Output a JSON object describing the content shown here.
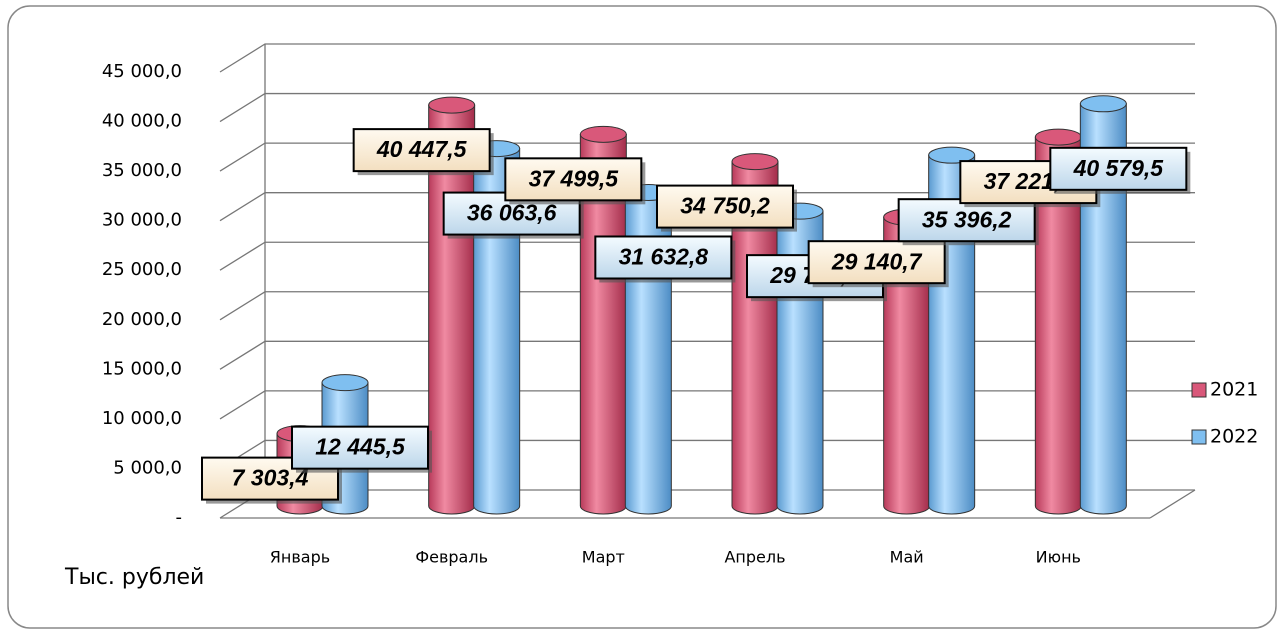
{
  "chart_data": {
    "type": "bar3d",
    "y_axis_label": "Тыс. рублей",
    "categories": [
      "Январь",
      "Февраль",
      "Март",
      "Апрель",
      "Май",
      "Июнь"
    ],
    "series": [
      {
        "name": "2021",
        "color": "#d9587a",
        "values": [
          7303.4,
          40447.5,
          37499.5,
          34750.2,
          29140.7,
          37221.3
        ],
        "value_labels": [
          "7 303,4",
          "40 447,5",
          "37 499,5",
          "34 750,2",
          "29 140,7",
          "37 221,3"
        ]
      },
      {
        "name": "2022",
        "color": "#7fbff0",
        "values": [
          12445.5,
          36063.6,
          31632.8,
          29750.1,
          35396.2,
          40579.5
        ],
        "value_labels": [
          "12 445,5",
          "36 063,6",
          "31 632,8",
          "29 750,1",
          "35 396,2",
          "40 579,5"
        ]
      }
    ],
    "ylim": [
      0,
      45000
    ],
    "yticks": [
      {
        "value": 0,
        "label": "-"
      },
      {
        "value": 5000,
        "label": "5 000,0"
      },
      {
        "value": 10000,
        "label": "10 000,0"
      },
      {
        "value": 15000,
        "label": "15 000,0"
      },
      {
        "value": 20000,
        "label": "20 000,0"
      },
      {
        "value": 25000,
        "label": "25 000,0"
      },
      {
        "value": 30000,
        "label": "30 000,0"
      },
      {
        "value": 35000,
        "label": "35 000,0"
      },
      {
        "value": 40000,
        "label": "40 000,0"
      },
      {
        "value": 45000,
        "label": "45 000,0"
      }
    ],
    "grid": true,
    "legend": "right"
  }
}
